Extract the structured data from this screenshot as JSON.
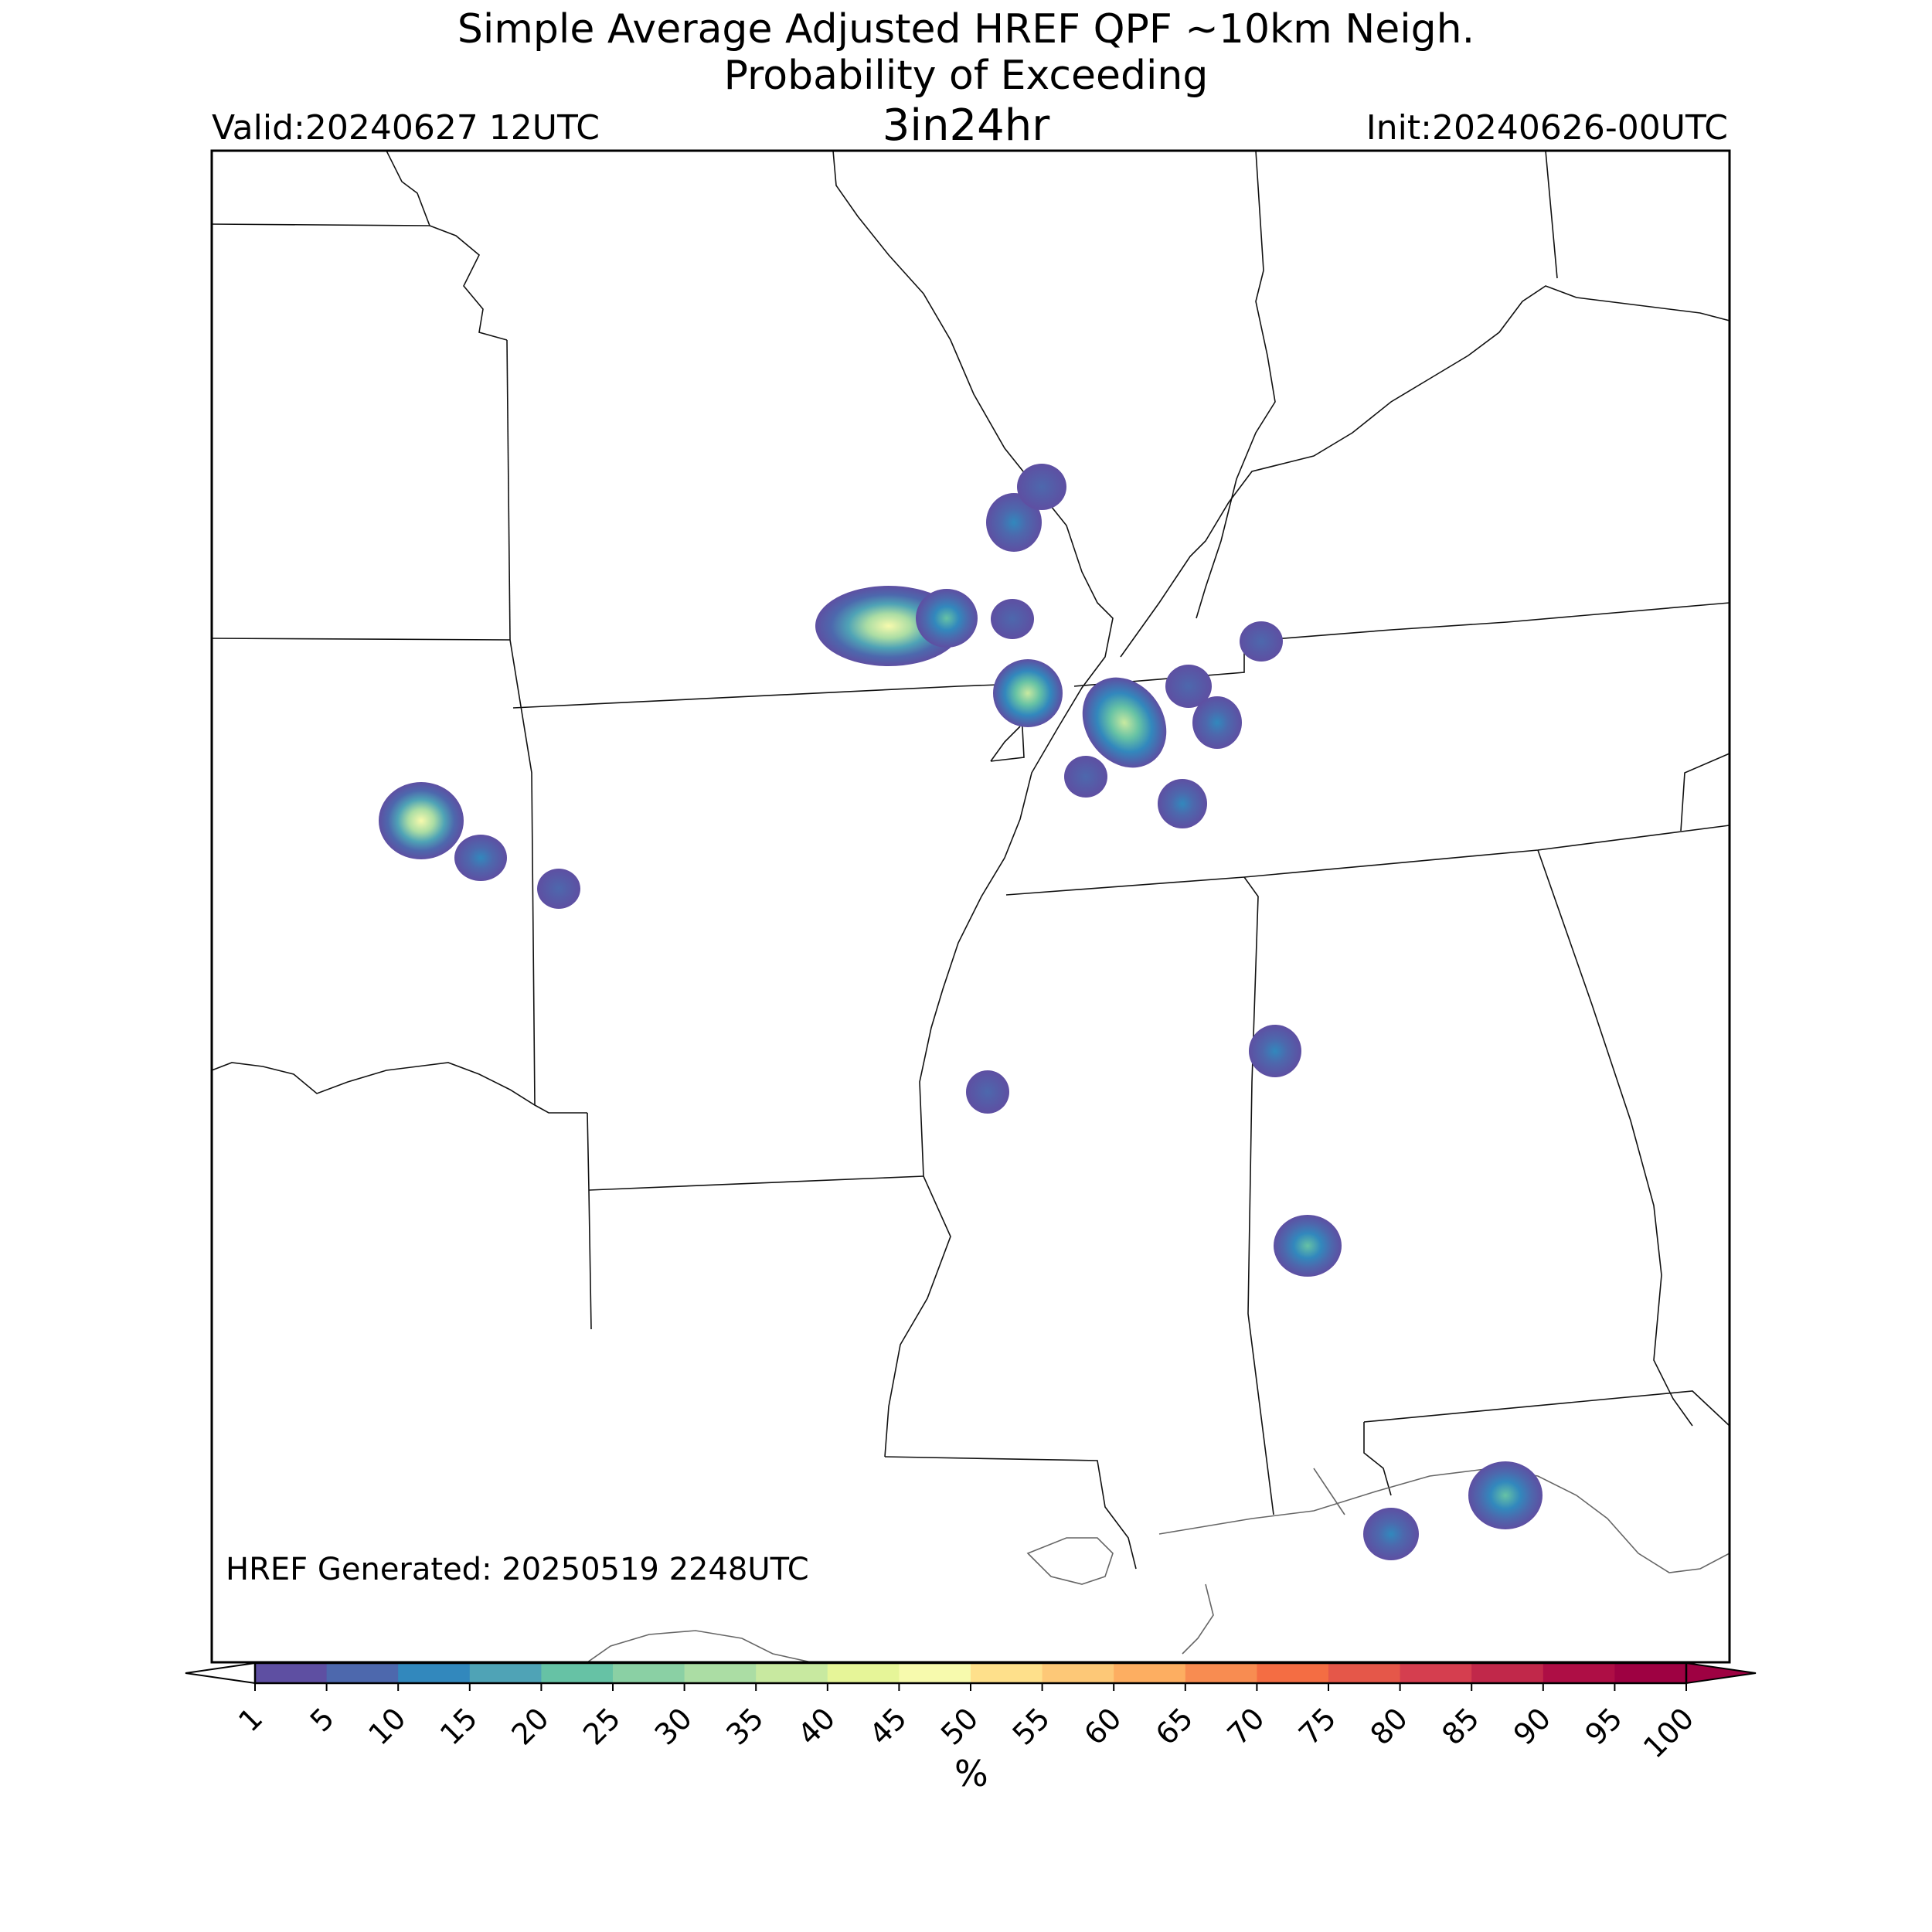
{
  "title": {
    "line1": "Simple Average Adjusted HREF QPF ~10km Neigh.",
    "line2": "Probability of Exceeding",
    "line3": "3in24hr"
  },
  "valid_label": "Valid:20240627 12UTC",
  "init_label": "Init:20240626-00UTC",
  "generated_label": "HREF Generated: 20250519 2248UTC",
  "colorbar": {
    "unit": "%",
    "ticks": [
      "1",
      "5",
      "10",
      "15",
      "20",
      "25",
      "30",
      "35",
      "40",
      "45",
      "50",
      "55",
      "60",
      "65",
      "70",
      "75",
      "80",
      "85",
      "90",
      "95",
      "100"
    ],
    "colors": [
      "#5e4fa2",
      "#4d68ad",
      "#3288bd",
      "#4fa3b6",
      "#66c2a5",
      "#8ad0a4",
      "#abdda4",
      "#c8e9a0",
      "#e6f598",
      "#f7faad",
      "#fee08b",
      "#fdc877",
      "#fdae61",
      "#f88c51",
      "#f46d43",
      "#e55749",
      "#d53e4f",
      "#c1284a",
      "#ae0e45",
      "#9e0142"
    ],
    "under_color": "#ffffff",
    "over_color": "#9e0142"
  },
  "probability_blobs": [
    {
      "region": "eastern Oklahoma",
      "peak_percent": 45
    },
    {
      "region": "eastern Oklahoma east",
      "peak_percent": 10
    },
    {
      "region": "western Arkansas border",
      "peak_percent": 5
    },
    {
      "region": "southern Missouri",
      "peak_percent": 45
    },
    {
      "region": "southern Missouri east",
      "peak_percent": 20
    },
    {
      "region": "southeast Missouri",
      "peak_percent": 5
    },
    {
      "region": "eastern Missouri north",
      "peak_percent": 10
    },
    {
      "region": "eastern Missouri north 2",
      "peak_percent": 5
    },
    {
      "region": "Missouri bootheel",
      "peak_percent": 30
    },
    {
      "region": "western Tennessee",
      "peak_percent": 25
    },
    {
      "region": "western Tennessee east",
      "peak_percent": 5
    },
    {
      "region": "western Tennessee east 2",
      "peak_percent": 10
    },
    {
      "region": "western Kentucky",
      "peak_percent": 5
    },
    {
      "region": "northwest Mississippi",
      "peak_percent": 5
    },
    {
      "region": "southwest Tennessee",
      "peak_percent": 10
    },
    {
      "region": "northwest Alabama",
      "peak_percent": 10
    },
    {
      "region": "central Mississippi",
      "peak_percent": 5
    },
    {
      "region": "central Alabama",
      "peak_percent": 15
    },
    {
      "region": "Alabama coast",
      "peak_percent": 10
    },
    {
      "region": "Florida panhandle",
      "peak_percent": 20
    }
  ]
}
